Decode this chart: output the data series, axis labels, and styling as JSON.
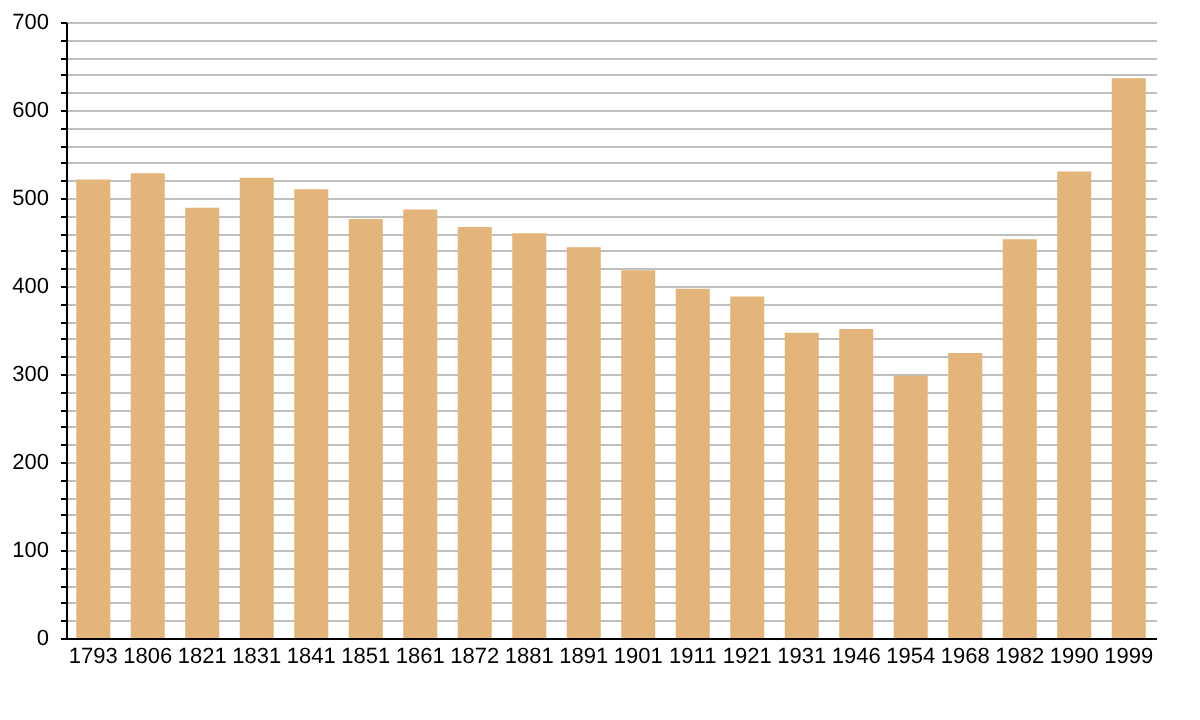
{
  "chart_data": {
    "type": "bar",
    "categories": [
      "1793",
      "1806",
      "1821",
      "1831",
      "1841",
      "1851",
      "1861",
      "1872",
      "1881",
      "1891",
      "1901",
      "1911",
      "1921",
      "1931",
      "1946",
      "1954",
      "1968",
      "1982",
      "1990",
      "1999"
    ],
    "values": [
      521,
      528,
      489,
      523,
      510,
      476,
      487,
      467,
      460,
      444,
      418,
      397,
      388,
      347,
      351,
      298,
      324,
      453,
      530,
      636
    ],
    "color": "#e3b57a",
    "ylim": [
      0,
      700
    ],
    "yticks": [
      0,
      {
        "value": 20,
        "label": null
      },
      {
        "value": 40,
        "label": null
      },
      {
        "value": 60,
        "label": null
      },
      {
        "value": 80,
        "label": null
      },
      100,
      {
        "value": 120,
        "label": null
      },
      {
        "value": 140,
        "label": null
      },
      {
        "value": 160,
        "label": null
      },
      {
        "value": 180,
        "label": null
      },
      200,
      {
        "value": 220,
        "label": null
      },
      {
        "value": 240,
        "label": null
      },
      {
        "value": 260,
        "label": null
      },
      {
        "value": 280,
        "label": null
      },
      300,
      {
        "value": 320,
        "label": null
      },
      {
        "value": 340,
        "label": null
      },
      {
        "value": 360,
        "label": null
      },
      {
        "value": 380,
        "label": null
      },
      400,
      {
        "value": 420,
        "label": null
      },
      {
        "value": 440,
        "label": null
      },
      {
        "value": 460,
        "label": null
      },
      {
        "value": 480,
        "label": null
      },
      500,
      {
        "value": 520,
        "label": null
      },
      {
        "value": 540,
        "label": null
      },
      {
        "value": 560,
        "label": null
      },
      {
        "value": 580,
        "label": null
      },
      600,
      {
        "value": 620,
        "label": null
      },
      {
        "value": 640,
        "label": null
      },
      {
        "value": 660,
        "label": null
      },
      {
        "value": 680,
        "label": null
      },
      700
    ],
    "grid": "y"
  }
}
